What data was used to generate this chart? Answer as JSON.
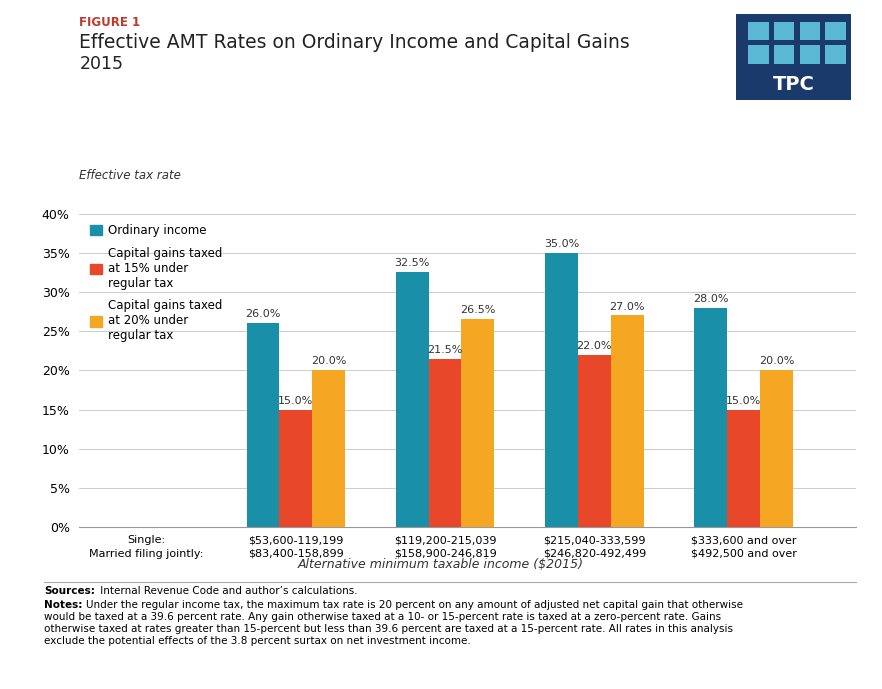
{
  "figure_label": "FIGURE 1",
  "title_line1": "Effective AMT Rates on Ordinary Income and Capital Gains",
  "title_line2": "2015",
  "ylabel": "Effective tax rate",
  "xlabel": "Alternative minimum taxable income ($2015)",
  "categories": [
    "Single:\nMarried filing jointly:",
    "$53,600-119,199\n$83,400-158,899",
    "$119,200-215,039\n$158,900-246,819",
    "$215,040-333,599\n$246,820-492,499",
    "$333,600 and over\n$492,500 and over"
  ],
  "ordinary_income": [
    null,
    26.0,
    32.5,
    35.0,
    28.0
  ],
  "cap_gains_15": [
    null,
    15.0,
    21.5,
    22.0,
    15.0
  ],
  "cap_gains_20": [
    null,
    20.0,
    26.5,
    27.0,
    20.0
  ],
  "color_ordinary": "#1a8fa8",
  "color_cap15": "#e8472a",
  "color_cap20": "#f5a623",
  "ylim": [
    0,
    40
  ],
  "yticks": [
    0,
    5,
    10,
    15,
    20,
    25,
    30,
    35,
    40
  ],
  "legend_label_ordinary": "Ordinary income",
  "legend_label_cap15": "Capital gains taxed\nat 15% under\nregular tax",
  "legend_label_cap20": "Capital gains taxed\nat 20% under\nregular tax",
  "bar_width": 0.22,
  "tpc_bg_color": "#1a3a6b",
  "tpc_sq_color_light": "#5bb8d4",
  "tpc_sq_color_dark": "#2e7fa8",
  "tpc_text_color": "#ffffff",
  "figure_label_color": "#c0392b",
  "title_color": "#222222",
  "sources_bold": "Sources:",
  "sources_rest": " Internal Revenue Code and author’s calculations.",
  "notes_bold": "Notes:",
  "notes_rest": " Under the regular income tax, the maximum tax rate is 20 percent on any amount of adjusted net capital gain that otherwise would be taxed at a 39.6 percent rate. Any gain otherwise taxed at a 10- or 15-percent rate is taxed at a zero-percent rate. Gains otherwise taxed at rates greater than 15-percent but less than 39.6 percent are taxed at a 15-percent rate. All rates in this analysis exclude the potential effects of the 3.8 percent surtax on net investment income."
}
